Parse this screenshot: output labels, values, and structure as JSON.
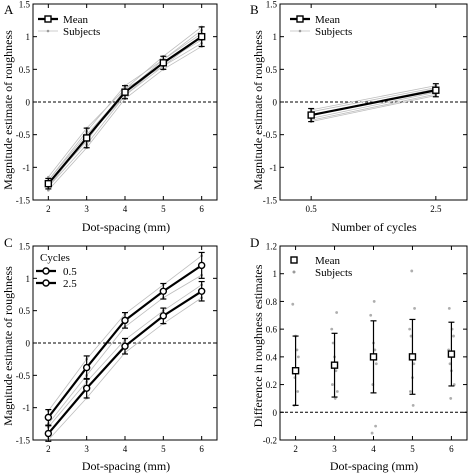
{
  "chart_data": [
    {
      "panel": "A",
      "type": "line",
      "xlabel": "Dot-spacing (mm)",
      "ylabel": "Magnitude estimate of roughness",
      "x": [
        2,
        3,
        4,
        5,
        6
      ],
      "xticks": [
        "2",
        "3",
        "4",
        "5",
        "6"
      ],
      "xlim": [
        1.6,
        6.4
      ],
      "ylim": [
        -1.5,
        1.5
      ],
      "yticks": [
        -1.5,
        -1,
        -0.5,
        0,
        0.5,
        1,
        1.5
      ],
      "yticklabels": [
        "-1.5",
        "-1",
        "-0.5",
        "0",
        "0.5",
        "1",
        "1.5"
      ],
      "zero_line": true,
      "legend": {
        "position": "top-left",
        "entries": [
          "Mean",
          "Subjects"
        ]
      },
      "series": [
        {
          "name": "Mean",
          "values": [
            -1.25,
            -0.55,
            0.15,
            0.6,
            1.0
          ],
          "error": [
            0.08,
            0.15,
            0.1,
            0.1,
            0.15
          ]
        }
      ],
      "subjects": [
        [
          -1.35,
          -0.7,
          0.05,
          0.5,
          0.85
        ],
        [
          -1.3,
          -0.65,
          0.1,
          0.55,
          0.9
        ],
        [
          -1.2,
          -0.45,
          0.25,
          0.65,
          1.1
        ],
        [
          -1.15,
          -0.4,
          0.2,
          0.7,
          1.15
        ],
        [
          -1.3,
          -0.55,
          0.1,
          0.6,
          0.95
        ],
        [
          -1.2,
          -0.5,
          0.15,
          0.65,
          1.05
        ],
        [
          -1.25,
          -0.6,
          0.2,
          0.55,
          1.0
        ]
      ]
    },
    {
      "panel": "B",
      "type": "line",
      "xlabel": "Number of cycles",
      "ylabel": "Magnitude estimate of roughness",
      "x": [
        0.5,
        2.5
      ],
      "xticks": [
        "0.5",
        "2.5"
      ],
      "xlim": [
        0,
        3
      ],
      "ylim": [
        -1.5,
        1.5
      ],
      "yticks": [
        -1.5,
        -1,
        -0.5,
        0,
        0.5,
        1,
        1.5
      ],
      "yticklabels": [
        "-1.5",
        "-1",
        "-0.5",
        "0",
        "0.5",
        "1",
        "1.5"
      ],
      "zero_line": true,
      "legend": {
        "position": "top-left",
        "entries": [
          "Mean",
          "Subjects"
        ]
      },
      "series": [
        {
          "name": "Mean",
          "values": [
            -0.2,
            0.18
          ],
          "error": [
            0.1,
            0.1
          ]
        }
      ],
      "subjects": [
        [
          -0.28,
          0.12
        ],
        [
          -0.15,
          0.22
        ],
        [
          -0.25,
          0.15
        ],
        [
          -0.12,
          0.25
        ],
        [
          -0.2,
          0.2
        ],
        [
          -0.3,
          0.1
        ]
      ]
    },
    {
      "panel": "C",
      "type": "line",
      "xlabel": "Dot-spacing (mm)",
      "ylabel": "Magnitude estimate of roughness",
      "x": [
        2,
        3,
        4,
        5,
        6
      ],
      "xticks": [
        "2",
        "3",
        "4",
        "5",
        "6"
      ],
      "xlim": [
        1.6,
        6.4
      ],
      "ylim": [
        -1.5,
        1.5
      ],
      "yticks": [
        -1.5,
        -1,
        -0.5,
        0,
        0.5,
        1,
        1.5
      ],
      "yticklabels": [
        "-1.5",
        "-1",
        "-0.5",
        "0",
        "0.5",
        "1",
        "1.5"
      ],
      "zero_line": true,
      "legend": {
        "position": "top-left",
        "title": "Cycles",
        "entries": [
          "0.5",
          "2.5"
        ]
      },
      "series": [
        {
          "name": "0.5",
          "values": [
            -1.4,
            -0.7,
            -0.05,
            0.42,
            0.8
          ],
          "error": [
            0.12,
            0.15,
            0.12,
            0.12,
            0.15
          ]
        },
        {
          "name": "2.5",
          "values": [
            -1.15,
            -0.38,
            0.35,
            0.8,
            1.2
          ],
          "error": [
            0.12,
            0.18,
            0.12,
            0.12,
            0.2
          ]
        }
      ],
      "subjects": [
        [
          -1.5,
          -0.85,
          -0.15,
          0.3,
          0.7
        ],
        [
          -1.3,
          -0.6,
          0.05,
          0.5,
          0.9
        ],
        [
          -1.05,
          -0.25,
          0.45,
          0.9,
          1.35
        ],
        [
          -1.25,
          -0.5,
          0.25,
          0.7,
          1.05
        ]
      ]
    },
    {
      "panel": "D",
      "type": "scatter",
      "xlabel": "Dot-spacing (mm)",
      "ylabel": "Difference in roughness estimates",
      "x": [
        2,
        3,
        4,
        5,
        6
      ],
      "xticks": [
        "2",
        "3",
        "4",
        "5",
        "6"
      ],
      "xlim": [
        1.6,
        6.4
      ],
      "ylim": [
        -0.2,
        1.2
      ],
      "yticks": [
        -0.2,
        0,
        0.2,
        0.4,
        0.6,
        0.8,
        1,
        1.2
      ],
      "yticklabels": [
        "-0.2",
        "0",
        "0.2",
        "0.4",
        "0.6",
        "0.8",
        "1",
        "1.2"
      ],
      "zero_line": true,
      "legend": {
        "position": "top-left",
        "entries": [
          "Mean",
          "Subjects"
        ]
      },
      "series": [
        {
          "name": "Mean",
          "values": [
            0.3,
            0.34,
            0.4,
            0.4,
            0.42
          ],
          "error": [
            0.25,
            0.23,
            0.26,
            0.27,
            0.23
          ]
        }
      ],
      "subject_points": [
        [
          0.78,
          0.55,
          0.4,
          0.25,
          0.15,
          0.05,
          0.45,
          0.3
        ],
        [
          0.72,
          0.5,
          0.3,
          0.2,
          0.1,
          0.6,
          0.4,
          0.15
        ],
        [
          0.8,
          0.7,
          0.5,
          0.35,
          0.2,
          -0.1,
          -0.15,
          0.45
        ],
        [
          1.02,
          0.75,
          0.55,
          0.35,
          0.15,
          0.05,
          0.6,
          0.25
        ],
        [
          0.75,
          0.6,
          0.45,
          0.3,
          0.2,
          0.1,
          0.55,
          0.35
        ]
      ]
    }
  ],
  "panel_labels": [
    "A",
    "B",
    "C",
    "D"
  ]
}
